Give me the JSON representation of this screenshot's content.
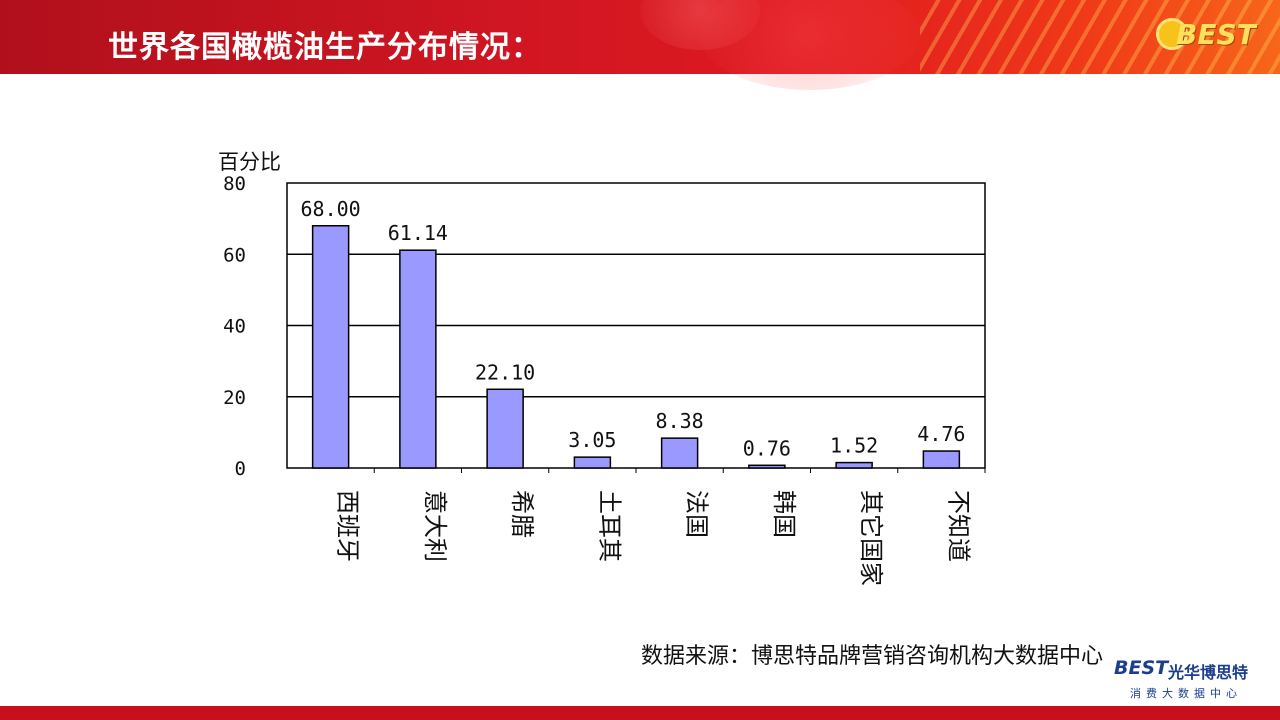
{
  "header": {
    "title": "世界各国橄榄油生产分布情况：",
    "logo_text": "BEST"
  },
  "footer": {
    "source": "数据来源：博思特品牌营销咨询机构大数据中心",
    "logo_mark": "BEST",
    "logo_name": "光华博思特",
    "logo_sub": "消费大数据中心"
  },
  "colors": {
    "banner": "#d01622",
    "bar_fill": "#9999ff",
    "bar_stroke": "#000000",
    "bottom_bar": "#c8101c"
  },
  "chart_data": {
    "type": "bar",
    "ylabel": "百分比",
    "xlabel": "",
    "categories": [
      "西班牙",
      "意大利",
      "希腊",
      "土耳其",
      "法国",
      "韩国",
      "其它国家",
      "不知道"
    ],
    "values": [
      68.0,
      61.14,
      22.1,
      3.05,
      8.38,
      0.76,
      1.52,
      4.76
    ],
    "value_labels": [
      "68.00",
      "61.14",
      "22.10",
      "3.05",
      "8.38",
      "0.76",
      "1.52",
      "4.76"
    ],
    "ylim": [
      0,
      80
    ],
    "yticks": [
      0,
      20,
      40,
      60,
      80
    ],
    "grid": true,
    "legend": "none"
  }
}
